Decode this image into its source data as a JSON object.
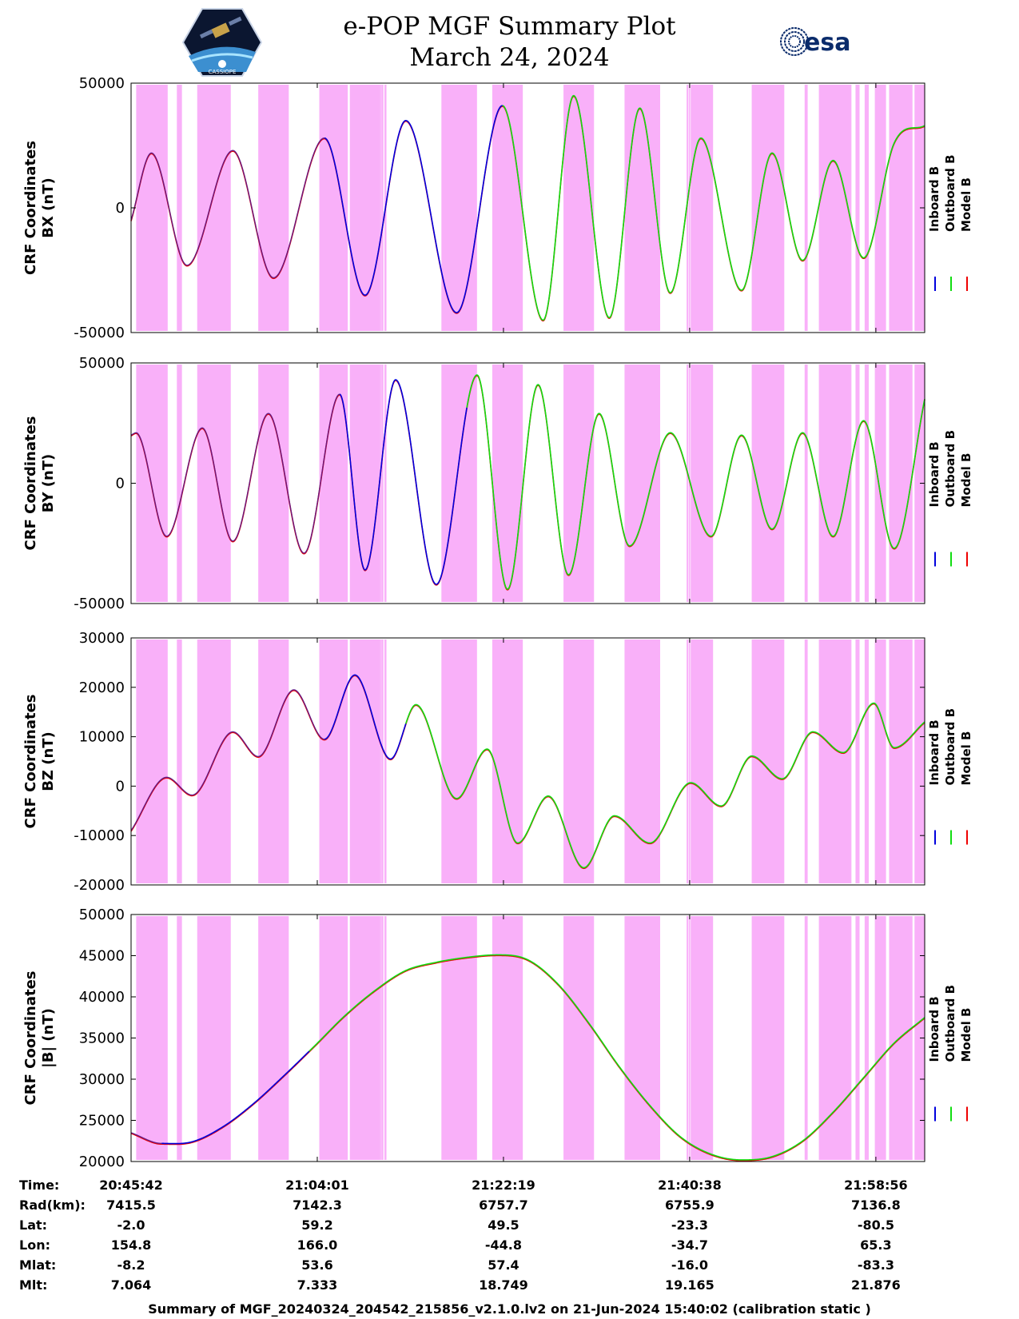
{
  "header": {
    "title": "e-POP MGF Summary Plot",
    "date": "March 24, 2024",
    "left_logo_text": "CASSIOPE",
    "right_logo_text": "esa"
  },
  "legend": [
    "Inboard B",
    "Outboard B",
    "Model B"
  ],
  "colors": {
    "inboard": "#0000dd",
    "outboard": "#11dd11",
    "model": "#ee0000",
    "shade": "#f9b0f9"
  },
  "chart_data": [
    {
      "type": "line",
      "ylabel_line1": "CRF Coordinates",
      "ylabel_line2": "BX (nT)",
      "ylim": [
        -50000,
        50000
      ],
      "yticks": [
        -50000,
        0,
        50000
      ],
      "x_minutes_range": [
        0,
        78
      ],
      "curve": {
        "t": [
          0,
          2,
          5.5,
          10,
          14,
          19,
          23,
          27,
          32,
          36.5,
          40.5,
          43.5,
          47,
          50,
          53,
          56,
          60,
          63,
          66,
          69,
          72,
          75,
          78
        ],
        "v": [
          -5000,
          22000,
          -23000,
          23000,
          -28000,
          28000,
          -35000,
          35000,
          -42000,
          41000,
          -45000,
          45000,
          -44000,
          40000,
          -34000,
          28000,
          -33000,
          22000,
          -21000,
          19000,
          -20000,
          26000,
          33000
        ]
      },
      "segments": {
        "model_until": 19,
        "inboard_until": 36.5
      }
    },
    {
      "type": "line",
      "ylabel_line1": "CRF Coordinates",
      "ylabel_line2": "BY (nT)",
      "ylim": [
        -50000,
        50000
      ],
      "yticks": [
        -50000,
        0,
        50000
      ],
      "x_minutes_range": [
        0,
        78
      ],
      "curve": {
        "t": [
          0,
          0.5,
          3.5,
          7,
          10,
          13.5,
          17,
          20.5,
          23,
          26,
          30,
          34,
          37,
          40,
          43,
          46,
          49,
          53,
          57,
          60,
          63,
          66,
          69,
          72,
          75,
          78
        ],
        "v": [
          20000,
          21000,
          -22000,
          23000,
          -24000,
          29000,
          -29000,
          37000,
          -36000,
          43000,
          -42000,
          45000,
          -44000,
          41000,
          -38000,
          29000,
          -26000,
          21000,
          -22000,
          20000,
          -19000,
          21000,
          -22000,
          26000,
          -27000,
          35000
        ]
      },
      "segments": {
        "model_until": 20.5,
        "inboard_until": 33
      }
    },
    {
      "type": "line",
      "ylabel_line1": "CRF Coordinates",
      "ylabel_line2": "BZ (nT)",
      "ylim": [
        -20000,
        30000
      ],
      "yticks": [
        -20000,
        -10000,
        0,
        10000,
        20000,
        30000
      ],
      "x_minutes_range": [
        0,
        78
      ],
      "curve": {
        "t": [
          0,
          3.5,
          6,
          10,
          12.5,
          16,
          19,
          22,
          25.5,
          28,
          32,
          35,
          38,
          41,
          44.5,
          47.5,
          51,
          55,
          58,
          61,
          64,
          67,
          70,
          73,
          75,
          78
        ],
        "v": [
          -9000,
          1800,
          -1800,
          11000,
          6000,
          19500,
          9500,
          22500,
          5500,
          16500,
          -2500,
          7500,
          -11500,
          -2000,
          -16500,
          -6000,
          -11500,
          700,
          -4000,
          6100,
          1500,
          11000,
          6800,
          16800,
          7800,
          13000
        ]
      },
      "segments": {
        "model_until": 19,
        "inboard_until": 27
      }
    },
    {
      "type": "line",
      "ylabel_line1": "CRF Coordinates",
      "ylabel_line2": "|B| (nT)",
      "ylim": [
        20000,
        50000
      ],
      "yticks": [
        20000,
        25000,
        30000,
        35000,
        40000,
        45000,
        50000
      ],
      "x_minutes_range": [
        0,
        78
      ],
      "curve": {
        "t": [
          0,
          3,
          6,
          9,
          12,
          15,
          18,
          21,
          24,
          27,
          30,
          33,
          36,
          39,
          42,
          45,
          48,
          51,
          54,
          57,
          60,
          63,
          66,
          69,
          72,
          75,
          78
        ],
        "v": [
          23500,
          22200,
          22400,
          24200,
          27000,
          30400,
          34000,
          37700,
          40800,
          43200,
          44200,
          44800,
          45100,
          44500,
          41500,
          36800,
          31500,
          26800,
          23000,
          20900,
          20200,
          20600,
          22500,
          26000,
          30200,
          34400,
          37500
        ]
      },
      "segments": {
        "model_until": 3,
        "inboard_until": 17.5
      }
    }
  ],
  "shade_intervals_min": [
    [
      0.5,
      3.6
    ],
    [
      4.5,
      5
    ],
    [
      6.5,
      9.8
    ],
    [
      12.5,
      15.5
    ],
    [
      18.5,
      21.3
    ],
    [
      21.5,
      24.5
    ],
    [
      24.6,
      24.8
    ],
    [
      24.9,
      25.1
    ],
    [
      24.5,
      24.55
    ],
    [
      30.5,
      34
    ],
    [
      35.5,
      38.5
    ],
    [
      42.5,
      45.5
    ],
    [
      48.5,
      52
    ],
    [
      55,
      57.2
    ],
    [
      54.6,
      54.75
    ],
    [
      54.8,
      54.95
    ],
    [
      61,
      64.2
    ],
    [
      66.2,
      66.5
    ],
    [
      67.6,
      70.8
    ],
    [
      71.2,
      71.6
    ],
    [
      72.1,
      72.5
    ],
    [
      73.1,
      74.2
    ],
    [
      74.5,
      76.8
    ],
    [
      77,
      78
    ]
  ],
  "info_table": {
    "labels": [
      "Time:",
      "Rad(km):",
      "Lat:",
      "Lon:",
      "Mlat:",
      "Mlt:"
    ],
    "columns": [
      [
        "20:45:42",
        "7415.5",
        "-2.0",
        "154.8",
        "-8.2",
        "7.064"
      ],
      [
        "21:04:01",
        "7142.3",
        "59.2",
        "166.0",
        "53.6",
        "7.333"
      ],
      [
        "21:22:19",
        "6757.7",
        "49.5",
        "-44.8",
        "57.4",
        "18.749"
      ],
      [
        "21:40:38",
        "6755.9",
        "-23.3",
        "-34.7",
        "-16.0",
        "19.165"
      ],
      [
        "21:58:56",
        "7136.8",
        "-80.5",
        "65.3",
        "-83.3",
        "21.876"
      ]
    ]
  },
  "footer": "Summary of MGF_20240324_204542_215856_v2.1.0.lv2 on 21-Jun-2024 15:40:02 (calibration static )"
}
